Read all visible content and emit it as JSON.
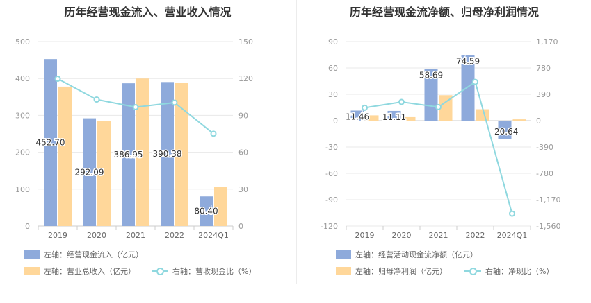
{
  "chart_data": [
    {
      "type": "bar",
      "title": "历年经营现金流入、营业收入情况",
      "categories": [
        "2019",
        "2020",
        "2021",
        "2022",
        "2024Q1"
      ],
      "left_axis": {
        "range": [
          0,
          500
        ],
        "ticks": [
          "0",
          "100",
          "200",
          "300",
          "400",
          "500"
        ]
      },
      "right_axis": {
        "range": [
          0,
          150
        ],
        "ticks": [
          "0",
          "30",
          "60",
          "90",
          "120",
          "150"
        ]
      },
      "series": [
        {
          "name": "左轴：经营现金流入（亿元）",
          "kind": "bar",
          "axis": "left",
          "color": "#8eaadb",
          "values": [
            452.7,
            292.09,
            386.95,
            390.38,
            80.4
          ],
          "labels": [
            "452.70",
            "292.09",
            "386.95",
            "390.38",
            "80.40"
          ]
        },
        {
          "name": "左轴：营业总收入（亿元）",
          "kind": "bar",
          "axis": "left",
          "color": "#ffd79a",
          "values": [
            378,
            284,
            400,
            389,
            107
          ]
        },
        {
          "name": "右轴：营收现金比（%）",
          "kind": "line",
          "axis": "right",
          "color": "#8fd8df",
          "values": [
            119.8,
            102.9,
            96.7,
            100.4,
            75.1
          ]
        }
      ]
    },
    {
      "type": "bar",
      "title": "历年经营现金流净额、归母净利润情况",
      "categories": [
        "2019",
        "2020",
        "2021",
        "2022",
        "2024Q1"
      ],
      "left_axis": {
        "range": [
          -120,
          90
        ],
        "ticks": [
          "-120",
          "-90",
          "-60",
          "-30",
          "0",
          "30",
          "60",
          "90"
        ]
      },
      "right_axis": {
        "range": [
          -1560,
          1170
        ],
        "ticks": [
          "-1,560",
          "-1,170",
          "-780",
          "-390",
          "0",
          "390",
          "780",
          "1,170"
        ]
      },
      "series": [
        {
          "name": "左轴：经营活动现金流净额（亿元）",
          "kind": "bar",
          "axis": "left",
          "color": "#8eaadb",
          "values": [
            11.46,
            11.11,
            58.69,
            74.59,
            -20.64
          ],
          "labels": [
            "11.46",
            "11.11",
            "58.69",
            "74.59",
            "-20.64"
          ]
        },
        {
          "name": "左轴：归母净利润（亿元）",
          "kind": "bar",
          "axis": "left",
          "color": "#ffd79a",
          "values": [
            6.0,
            4.0,
            29.0,
            13.0,
            1.5
          ]
        },
        {
          "name": "右轴：净现比（%）",
          "kind": "line",
          "axis": "right",
          "color": "#8fd8df",
          "values": [
            191,
            277,
            202,
            574,
            -1376
          ]
        }
      ]
    }
  ]
}
